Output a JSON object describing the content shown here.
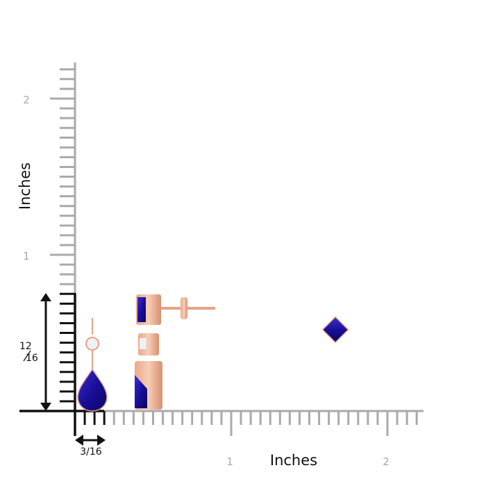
{
  "y_axis": {
    "label": "Inches",
    "ticks": [
      "1",
      "2"
    ]
  },
  "x_axis": {
    "label": "Inches",
    "ticks": [
      "1",
      "2"
    ]
  },
  "height_dimension": {
    "numerator": "12",
    "denominator": "16"
  },
  "width_dimension": {
    "label": "3/16"
  }
}
